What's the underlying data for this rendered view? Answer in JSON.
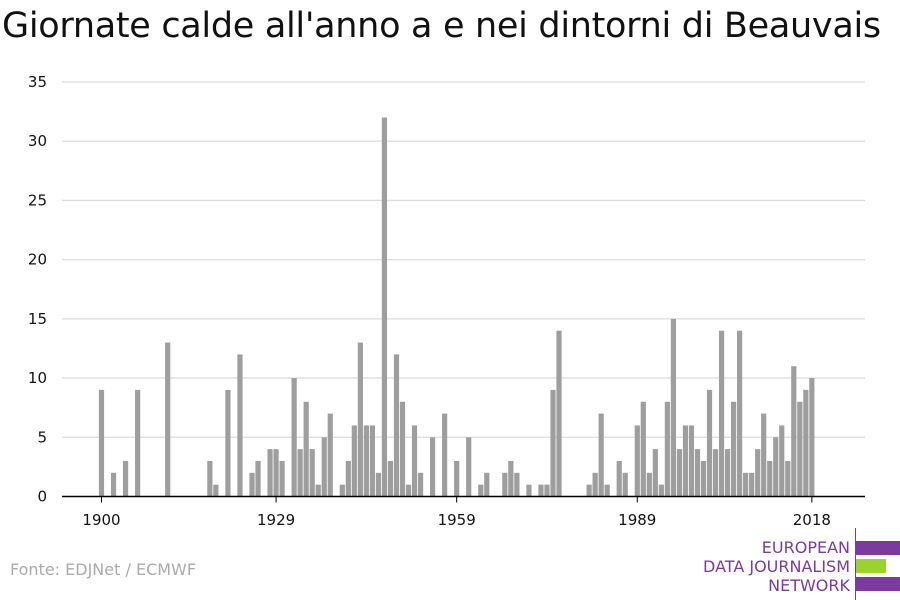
{
  "title": "Giornate calde all'anno a e nei dintorni di Beauvais",
  "source": "Fonte: EDJNet / ECMWF",
  "logo": {
    "lines": [
      "EUROPEAN",
      "DATA JOURNALISM",
      "NETWORK"
    ],
    "colors": {
      "purple": "#7a3a9e",
      "green": "#9ad32c"
    }
  },
  "colors": {
    "bar": "#9e9e9e",
    "grid": "#dddddd",
    "axis": "#000000",
    "tick_text": "#111111"
  },
  "chart_data": {
    "type": "bar",
    "title": "Giornate calde all'anno a e nei dintorni di Beauvais",
    "xlabel": "",
    "ylabel": "",
    "ylim": [
      0,
      35
    ],
    "yticks": [
      0,
      5,
      10,
      15,
      20,
      25,
      30,
      35
    ],
    "xticks": [
      1900,
      1929,
      1959,
      1989,
      2018
    ],
    "grid": true,
    "x": [
      1900,
      1901,
      1902,
      1903,
      1904,
      1905,
      1906,
      1907,
      1908,
      1909,
      1910,
      1911,
      1912,
      1913,
      1914,
      1915,
      1916,
      1917,
      1918,
      1919,
      1920,
      1921,
      1922,
      1923,
      1924,
      1925,
      1926,
      1927,
      1928,
      1929,
      1930,
      1931,
      1932,
      1933,
      1934,
      1935,
      1936,
      1937,
      1938,
      1939,
      1940,
      1941,
      1942,
      1943,
      1944,
      1945,
      1946,
      1947,
      1948,
      1949,
      1950,
      1951,
      1952,
      1953,
      1954,
      1955,
      1956,
      1957,
      1958,
      1959,
      1960,
      1961,
      1962,
      1963,
      1964,
      1965,
      1966,
      1967,
      1968,
      1969,
      1970,
      1971,
      1972,
      1973,
      1974,
      1975,
      1976,
      1977,
      1978,
      1979,
      1980,
      1981,
      1982,
      1983,
      1984,
      1985,
      1986,
      1987,
      1988,
      1989,
      1990,
      1991,
      1992,
      1993,
      1994,
      1995,
      1996,
      1997,
      1998,
      1999,
      2000,
      2001,
      2002,
      2003,
      2004,
      2005,
      2006,
      2007,
      2008,
      2009,
      2010,
      2011,
      2012,
      2013,
      2014,
      2015,
      2016,
      2017,
      2018
    ],
    "values": [
      9,
      0,
      2,
      0,
      3,
      0,
      9,
      0,
      0,
      0,
      0,
      13,
      0,
      0,
      0,
      0,
      0,
      0,
      3,
      1,
      0,
      9,
      0,
      12,
      0,
      2,
      3,
      0,
      4,
      4,
      3,
      0,
      10,
      4,
      8,
      4,
      1,
      5,
      7,
      0,
      1,
      3,
      6,
      13,
      6,
      6,
      2,
      32,
      3,
      12,
      8,
      1,
      6,
      2,
      0,
      5,
      0,
      7,
      0,
      3,
      0,
      5,
      0,
      1,
      2,
      0,
      0,
      2,
      3,
      2,
      0,
      1,
      0,
      1,
      1,
      9,
      14,
      0,
      0,
      0,
      0,
      1,
      2,
      7,
      1,
      0,
      3,
      2,
      0,
      6,
      8,
      2,
      4,
      1,
      8,
      15,
      4,
      6,
      6,
      4,
      3,
      9,
      4,
      14,
      4,
      8,
      14,
      2,
      2,
      4,
      7,
      3,
      5,
      6,
      3,
      11,
      8,
      9,
      10
    ]
  }
}
